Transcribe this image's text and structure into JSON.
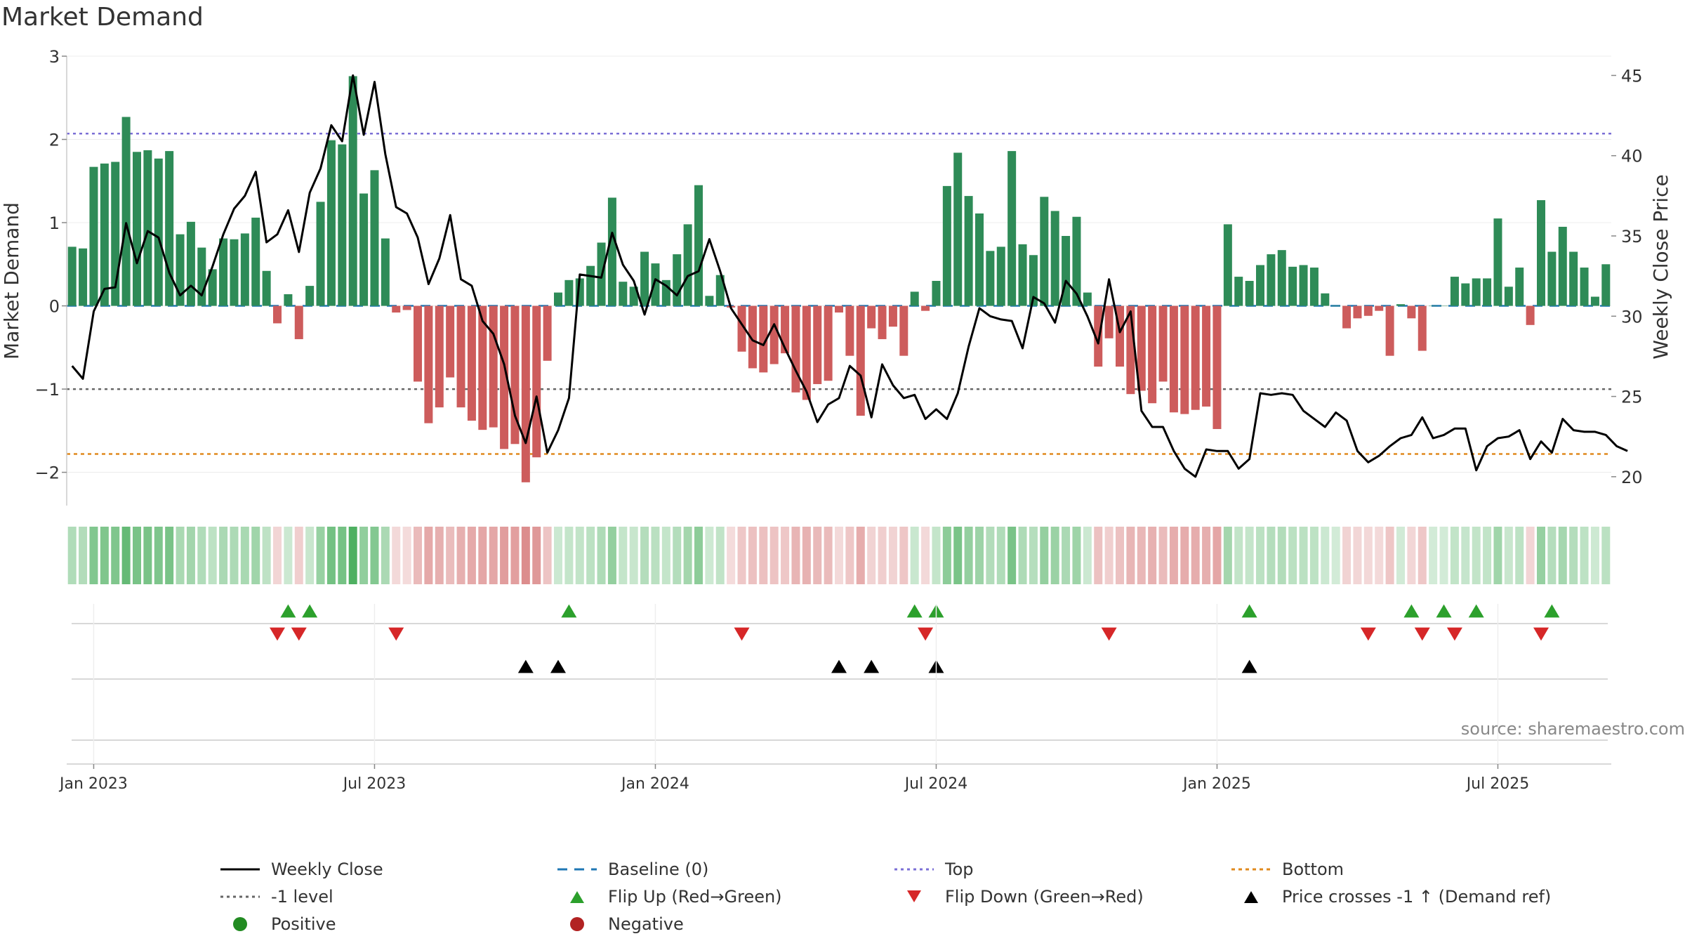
{
  "title": "Market Demand",
  "source": "source: sharemaestro.com",
  "colors": {
    "positive": "#2e8b57",
    "negative": "#cd5c5c",
    "top": "#7b6fd6",
    "bottom": "#e08a1e",
    "level": "#666666",
    "baseline": "#1f77b4",
    "flip_up": "#2ca02c",
    "flip_down": "#d62728",
    "cross": "#000000",
    "close": "#000000",
    "legend_positive": "#228b22",
    "legend_negative": "#b22222"
  },
  "chart_data": {
    "type": "bar",
    "title": "Market Demand",
    "ylabel": "Market Demand",
    "y2label": "Weekly Close Price",
    "ylim": [
      -2.4,
      3.0
    ],
    "y2lim": [
      18.2,
      46.2
    ],
    "yticks": [
      3,
      2,
      1,
      0,
      -1,
      -2
    ],
    "ytick_labels": [
      "3",
      "2",
      "1",
      "0",
      "−1",
      "−2"
    ],
    "y2ticks": [
      45,
      40,
      35,
      30,
      25,
      20
    ],
    "y2tick_labels": [
      "45",
      "40",
      "35",
      "30",
      "25",
      "20"
    ],
    "xticks": [
      {
        "label": "Jan 2023",
        "week": 2
      },
      {
        "label": "Jul 2023",
        "week": 28
      },
      {
        "label": "Jan 2024",
        "week": 54
      },
      {
        "label": "Jul 2024",
        "week": 80
      },
      {
        "label": "Jan 2025",
        "week": 106
      },
      {
        "label": "Jul 2025",
        "week": 132
      }
    ],
    "top_level": 2.07,
    "bottom_level": -1.78,
    "minus1_level": -1.0,
    "demand": [
      0.71,
      0.69,
      1.67,
      1.71,
      1.73,
      2.27,
      1.85,
      1.87,
      1.77,
      1.86,
      0.86,
      1.01,
      0.7,
      0.44,
      0.81,
      0.8,
      0.87,
      1.06,
      0.42,
      -0.21,
      0.14,
      -0.4,
      0.24,
      1.25,
      1.99,
      1.94,
      2.76,
      1.35,
      1.63,
      0.81,
      -0.08,
      -0.05,
      -0.91,
      -1.41,
      -1.22,
      -0.86,
      -1.22,
      -1.38,
      -1.49,
      -1.46,
      -1.72,
      -1.66,
      -2.12,
      -1.82,
      -0.66,
      0.16,
      0.31,
      0.33,
      0.48,
      0.76,
      1.3,
      0.29,
      0.23,
      0.65,
      0.51,
      0.31,
      0.62,
      0.98,
      1.45,
      0.12,
      0.37,
      -0.02,
      -0.55,
      -0.75,
      -0.8,
      -0.7,
      -0.57,
      -1.04,
      -1.13,
      -0.94,
      -0.9,
      -0.08,
      -0.6,
      -1.32,
      -0.27,
      -0.4,
      -0.25,
      -0.6,
      0.17,
      -0.06,
      0.3,
      1.44,
      1.84,
      1.32,
      1.11,
      0.66,
      0.71,
      1.86,
      0.74,
      0.61,
      1.31,
      1.14,
      0.84,
      1.07,
      0.16,
      -0.73,
      -0.39,
      -0.73,
      -1.06,
      -1.02,
      -1.17,
      -0.91,
      -1.28,
      -1.3,
      -1.25,
      -1.21,
      -1.48,
      0.98,
      0.35,
      0.3,
      0.49,
      0.62,
      0.67,
      0.47,
      0.49,
      0.46,
      0.15,
      0.0,
      -0.27,
      -0.15,
      -0.12,
      -0.06,
      -0.6,
      0.02,
      -0.15,
      -0.54,
      0.0,
      0.0,
      0.35,
      0.27,
      0.33,
      0.33,
      1.05,
      0.23,
      0.46,
      -0.23,
      1.27,
      0.65,
      0.95,
      0.65,
      0.46,
      0.11,
      0.5
    ],
    "close": [
      26.9,
      26.1,
      30.3,
      31.7,
      31.8,
      35.8,
      33.3,
      35.3,
      34.9,
      32.7,
      31.3,
      31.9,
      31.3,
      33.1,
      35.1,
      36.7,
      37.5,
      39.0,
      34.6,
      35.1,
      36.6,
      34.0,
      37.7,
      39.2,
      41.9,
      40.9,
      45.0,
      41.3,
      44.6,
      40.1,
      36.8,
      36.4,
      34.9,
      32.0,
      33.6,
      36.3,
      32.3,
      31.9,
      29.7,
      28.9,
      27.0,
      23.8,
      22.1,
      25.0,
      21.5,
      22.9,
      24.9,
      32.6,
      32.5,
      32.4,
      35.2,
      33.2,
      32.2,
      30.1,
      32.3,
      31.9,
      31.3,
      32.5,
      32.8,
      34.8,
      32.8,
      30.5,
      29.5,
      28.5,
      28.2,
      29.5,
      28.0,
      26.6,
      25.3,
      23.4,
      24.5,
      24.9,
      26.9,
      26.3,
      23.7,
      27.0,
      25.7,
      24.9,
      25.1,
      23.6,
      24.2,
      23.6,
      25.2,
      28.1,
      30.5,
      30.0,
      29.8,
      29.7,
      28.0,
      31.2,
      30.8,
      29.6,
      32.2,
      31.4,
      30.0,
      28.3,
      32.3,
      29.0,
      30.3,
      24.1,
      23.1,
      23.1,
      21.6,
      20.5,
      20.0,
      21.7,
      21.6,
      21.6,
      20.5,
      21.1,
      25.2,
      25.1,
      25.2,
      25.1,
      24.1,
      23.6,
      23.1,
      24.0,
      23.5,
      21.6,
      20.9,
      21.3,
      21.9,
      22.4,
      22.6,
      23.7,
      22.4,
      22.6,
      23.0,
      23.0,
      20.4,
      21.9,
      22.4,
      22.5,
      22.9,
      21.1,
      22.2,
      21.5,
      23.6,
      22.9,
      22.8,
      22.8,
      22.6,
      21.9,
      21.6
    ],
    "flip_up_weeks": [
      20,
      22,
      46,
      78,
      80,
      109,
      124,
      127,
      130,
      137
    ],
    "flip_down_weeks": [
      19,
      21,
      30,
      62,
      79,
      96,
      120,
      125,
      128,
      136
    ],
    "cross_weeks": [
      42,
      45,
      71,
      74,
      80,
      109
    ]
  },
  "legend": [
    {
      "key": "close",
      "label": "Weekly Close"
    },
    {
      "key": "baseline",
      "label": "Baseline (0)"
    },
    {
      "key": "top",
      "label": "Top"
    },
    {
      "key": "bottom",
      "label": "Bottom"
    },
    {
      "key": "level",
      "label": "-1 level"
    },
    {
      "key": "flip_up",
      "label": "Flip Up (Red→Green)"
    },
    {
      "key": "flip_down",
      "label": "Flip Down (Green→Red)"
    },
    {
      "key": "cross",
      "label": "Price crosses -1 ↑ (Demand ref)"
    },
    {
      "key": "positive",
      "label": "Positive"
    },
    {
      "key": "negative",
      "label": "Negative"
    }
  ]
}
